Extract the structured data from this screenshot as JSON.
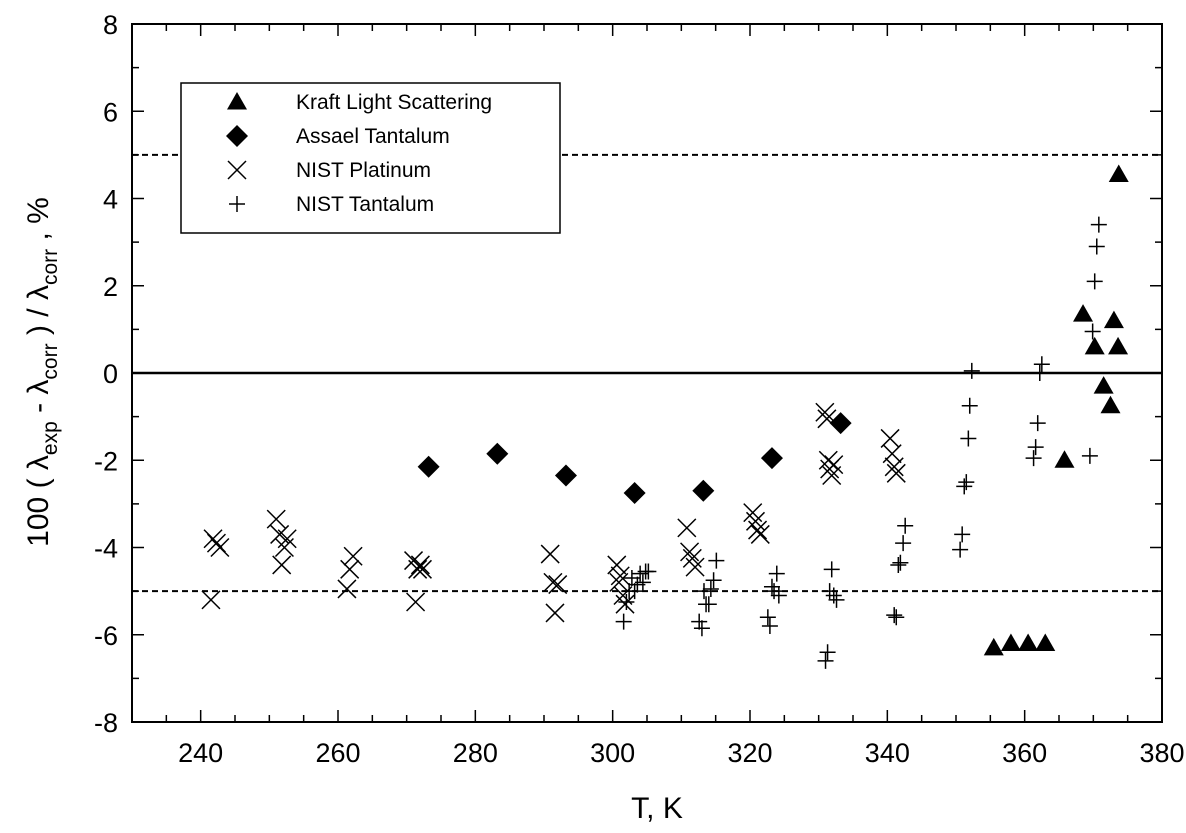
{
  "chart_data": {
    "type": "scatter",
    "title": "",
    "xlabel": "T, K",
    "ylabel": {
      "parts": [
        {
          "text": "100 ( ",
          "sub": false
        },
        {
          "text": "λ",
          "sub": false
        },
        {
          "text": "exp",
          "sub": true
        },
        {
          "text": " - ",
          "sub": false
        },
        {
          "text": "λ",
          "sub": false
        },
        {
          "text": "corr",
          "sub": true
        },
        {
          "text": " ) / ",
          "sub": false
        },
        {
          "text": "λ",
          "sub": false
        },
        {
          "text": "corr",
          "sub": true
        },
        {
          "text": " , %",
          "sub": false
        }
      ]
    },
    "xlim": [
      230,
      380
    ],
    "ylim": [
      -8,
      8
    ],
    "xticks": [
      240,
      260,
      280,
      300,
      320,
      340,
      360,
      380
    ],
    "yticks": [
      -8,
      -6,
      -4,
      -2,
      0,
      2,
      4,
      6,
      8
    ],
    "xtick_labels": [
      "240",
      "260",
      "280",
      "300",
      "320",
      "340",
      "360",
      "380"
    ],
    "ytick_labels": [
      "-8",
      "-6",
      "-4",
      "-2",
      "0",
      "2",
      "4",
      "6",
      "8"
    ],
    "grid": false,
    "legend_position": "top-left",
    "reference_lines": [
      {
        "y": 0,
        "style": "solid"
      },
      {
        "y": 5,
        "style": "dashed"
      },
      {
        "y": -5,
        "style": "dashed"
      }
    ],
    "series": [
      {
        "name": "Kraft Light Scattering",
        "marker": "triangle",
        "x": [
          355.5,
          358.0,
          360.5,
          363.0,
          365.8,
          368.5,
          370.2,
          371.5,
          372.5,
          373.0,
          373.6,
          373.7
        ],
        "y": [
          -6.3,
          -6.2,
          -6.2,
          -6.2,
          -2.0,
          1.35,
          0.6,
          -0.3,
          -0.75,
          1.2,
          0.6,
          4.55
        ]
      },
      {
        "name": "Assael Tantalum",
        "marker": "diamond",
        "x": [
          273.2,
          283.2,
          293.2,
          303.2,
          313.2,
          323.2,
          333.2
        ],
        "y": [
          -2.15,
          -1.85,
          -2.35,
          -2.75,
          -2.7,
          -1.95,
          -1.15
        ]
      },
      {
        "name": "NIST Platinum",
        "marker": "x",
        "x": [
          241.5,
          241.8,
          242.3,
          242.8,
          251.0,
          251.5,
          251.8,
          252.2,
          252.6,
          261.3,
          261.7,
          262.2,
          271.0,
          271.3,
          271.6,
          272.0,
          272.3,
          290.9,
          291.3,
          291.6,
          292.0,
          300.6,
          300.9,
          301.1,
          301.5,
          301.8,
          310.8,
          311.2,
          311.6,
          312.0,
          320.4,
          320.8,
          321.1,
          321.5,
          330.9,
          331.2,
          331.4,
          331.6,
          331.9,
          332.2,
          340.4,
          340.7,
          341.0,
          341.3
        ],
        "y": [
          -5.2,
          -3.8,
          -3.9,
          -4.0,
          -3.35,
          -3.7,
          -4.4,
          -4.0,
          -3.8,
          -4.95,
          -4.5,
          -4.2,
          -4.3,
          -5.25,
          -4.5,
          -4.4,
          -4.5,
          -4.15,
          -4.8,
          -5.5,
          -4.85,
          -4.4,
          -4.8,
          -4.65,
          -5.1,
          -5.3,
          -3.55,
          -4.1,
          -4.25,
          -4.45,
          -3.2,
          -3.4,
          -3.6,
          -3.7,
          -0.9,
          -1.05,
          -2.0,
          -2.2,
          -2.35,
          -2.1,
          -1.5,
          -1.85,
          -2.15,
          -2.3
        ]
      },
      {
        "name": "NIST Tantalum",
        "marker": "plus",
        "x": [
          301.6,
          302.0,
          302.4,
          302.8,
          303.2,
          303.6,
          304.0,
          304.4,
          304.8,
          305.2,
          312.6,
          313.0,
          313.3,
          313.6,
          314.0,
          314.3,
          314.7,
          315.1,
          322.6,
          322.9,
          323.2,
          323.5,
          323.9,
          324.2,
          331.0,
          331.3,
          331.6,
          331.9,
          332.2,
          332.6,
          341.0,
          341.3,
          341.6,
          341.9,
          342.3,
          342.6,
          350.6,
          350.9,
          351.2,
          351.5,
          351.8,
          352.0,
          352.3,
          361.3,
          361.6,
          361.9,
          362.2,
          362.5,
          369.5,
          369.9,
          370.2,
          370.5,
          370.8
        ],
        "y": [
          -5.7,
          -5.25,
          -5.0,
          -4.7,
          -5.0,
          -4.85,
          -4.6,
          -4.8,
          -4.55,
          -4.55,
          -5.7,
          -5.85,
          -5.0,
          -5.3,
          -5.3,
          -4.95,
          -4.75,
          -4.3,
          -5.6,
          -5.8,
          -4.9,
          -5.0,
          -4.6,
          -5.1,
          -6.6,
          -6.4,
          -5.0,
          -4.5,
          -5.1,
          -5.2,
          -5.55,
          -5.6,
          -4.4,
          -4.35,
          -3.9,
          -3.5,
          -4.05,
          -3.7,
          -2.6,
          -2.5,
          -1.5,
          -0.75,
          0.05,
          -1.95,
          -1.7,
          -1.15,
          0.0,
          0.2,
          -1.9,
          0.95,
          2.1,
          2.9,
          3.4
        ]
      }
    ]
  }
}
